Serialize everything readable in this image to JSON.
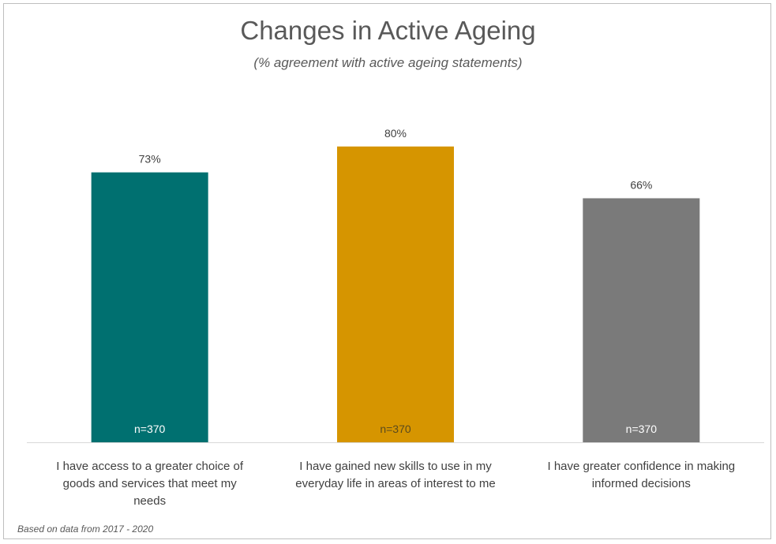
{
  "chart_data": {
    "type": "bar",
    "title": "Changes in Active Ageing",
    "subtitle": "(% agreement with active ageing statements)",
    "categories": [
      [
        "I have access to a greater choice of",
        "goods and services that meet my",
        "needs"
      ],
      [
        "I have gained new skills to use in my",
        "everyday life in areas of interest to me"
      ],
      [
        "I have greater confidence in making",
        "informed decisions"
      ]
    ],
    "values": [
      73,
      80,
      66
    ],
    "value_labels": [
      "73%",
      "80%",
      "66%"
    ],
    "sample_labels": [
      "n=370",
      "n=370",
      "n=370"
    ],
    "colors": [
      "#007070",
      "#d69500",
      "#7a7a7a"
    ],
    "sample_label_colors": [
      "#ffffff",
      "#5a4a1e",
      "#ffffff"
    ],
    "xlabel": "",
    "ylabel": "",
    "ylim": [
      0,
      100
    ],
    "grid": false,
    "legend": "none"
  },
  "footnote": "Based on data from 2017 - 2020"
}
